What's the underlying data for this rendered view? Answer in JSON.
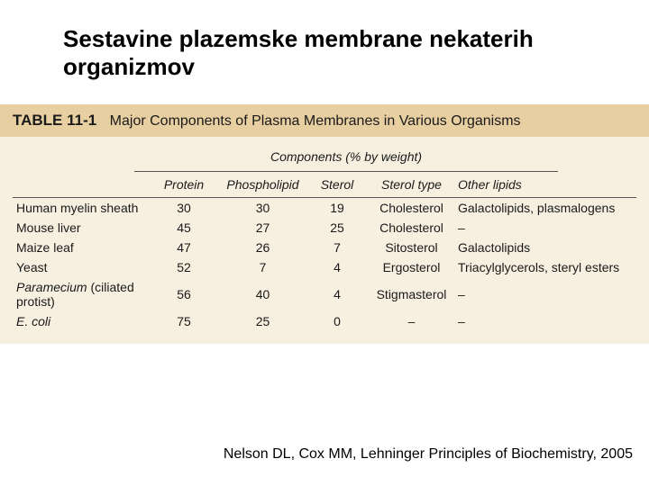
{
  "title": "Sestavine plazemske membrane nekaterih organizmov",
  "table": {
    "number": "TABLE 11-1",
    "caption": "Major Components of Plasma Membranes in Various Organisms",
    "super_header": "Components (% by weight)",
    "columns": {
      "organism": "",
      "protein": "Protein",
      "phospholipid": "Phospholipid",
      "sterol": "Sterol",
      "sterol_type": "Sterol type",
      "other_lipids": "Other lipids"
    },
    "rows": [
      {
        "organism": "Human myelin sheath",
        "italic": false,
        "protein": "30",
        "phospholipid": "30",
        "sterol": "19",
        "sterol_type": "Cholesterol",
        "other_lipids": "Galactolipids, plasmalogens"
      },
      {
        "organism": "Mouse liver",
        "italic": false,
        "protein": "45",
        "phospholipid": "27",
        "sterol": "25",
        "sterol_type": "Cholesterol",
        "other_lipids": "–"
      },
      {
        "organism": "Maize leaf",
        "italic": false,
        "protein": "47",
        "phospholipid": "26",
        "sterol": "7",
        "sterol_type": "Sitosterol",
        "other_lipids": "Galactolipids"
      },
      {
        "organism": "Yeast",
        "italic": false,
        "protein": "52",
        "phospholipid": "7",
        "sterol": "4",
        "sterol_type": "Ergosterol",
        "other_lipids": "Triacylglycerols, steryl esters"
      },
      {
        "organism": "Paramecium",
        "suffix": " (ciliated protist)",
        "italic": true,
        "protein": "56",
        "phospholipid": "40",
        "sterol": "4",
        "sterol_type": "Stigmasterol",
        "other_lipids": "–"
      },
      {
        "organism": "E. coli",
        "italic": true,
        "protein": "75",
        "phospholipid": "25",
        "sterol": "0",
        "sterol_type": "–",
        "other_lipids": "–"
      }
    ],
    "colors": {
      "header_bg": "#e8cfa2",
      "body_bg": "#f7f0e1",
      "rule": "#555555",
      "text": "#1a1a1a"
    }
  },
  "citation": "Nelson DL, Cox MM, Lehninger Principles of Biochemistry, 2005"
}
